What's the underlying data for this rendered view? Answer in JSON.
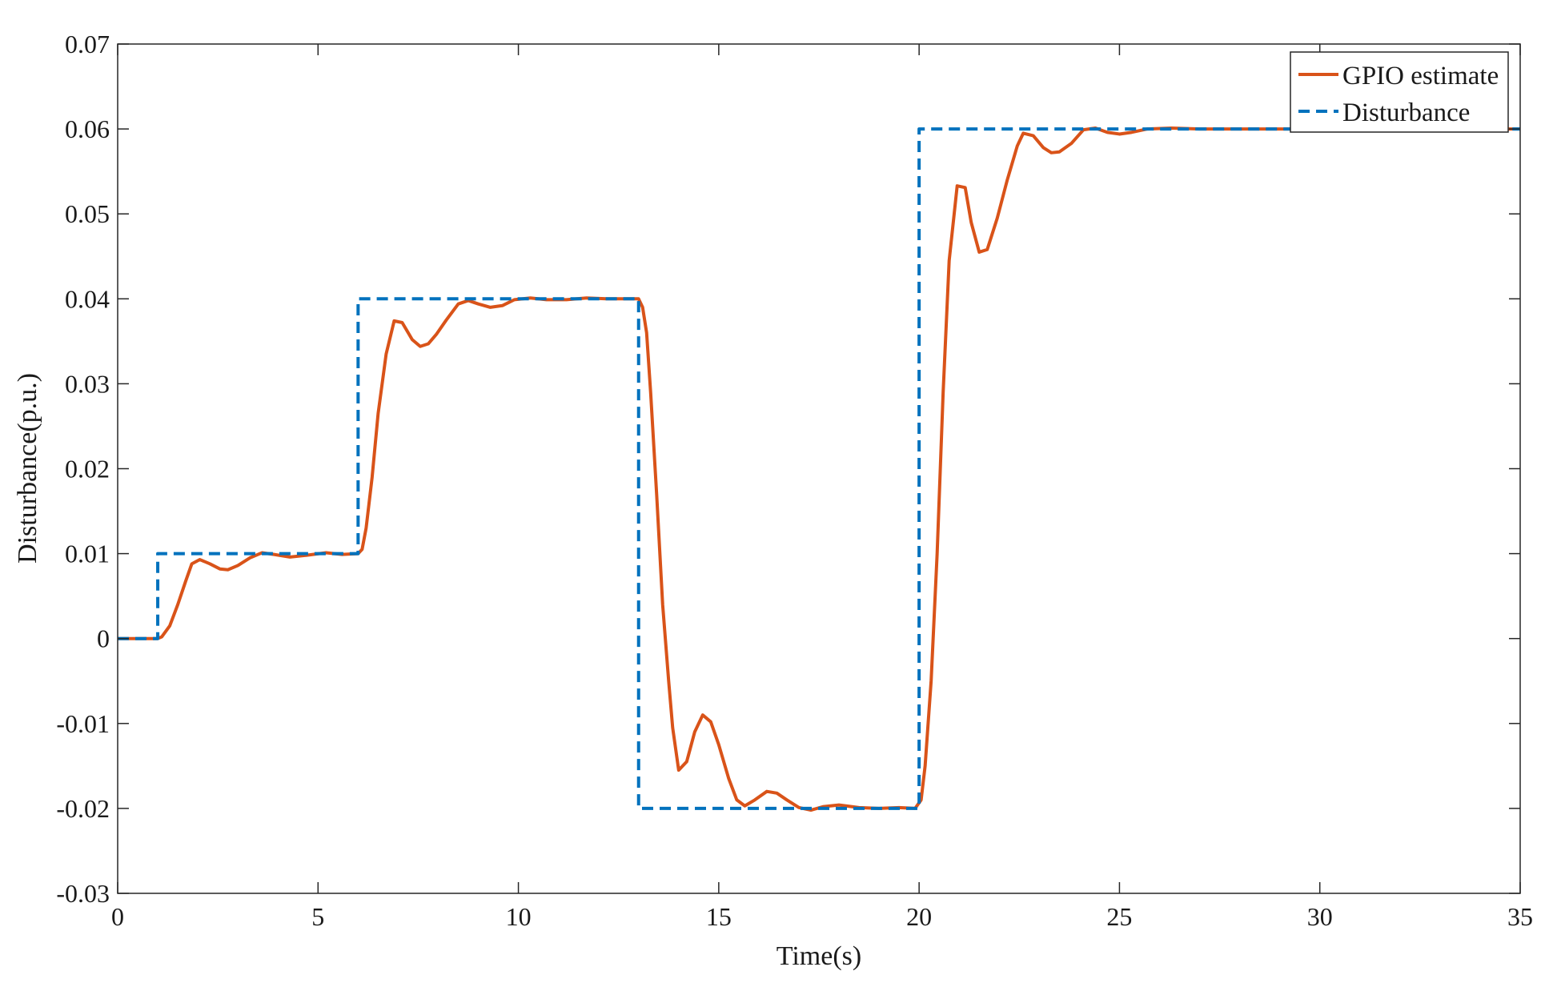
{
  "chart_data": {
    "type": "line",
    "xlabel": "Time(s)",
    "ylabel": "Disturbance(p.u.)",
    "xlim": [
      0,
      35
    ],
    "ylim": [
      -0.03,
      0.07
    ],
    "xticks": [
      0,
      5,
      10,
      15,
      20,
      25,
      30,
      35
    ],
    "xtick_labels": [
      "0",
      "5",
      "10",
      "15",
      "20",
      "25",
      "30",
      "35"
    ],
    "yticks": [
      -0.03,
      -0.02,
      -0.01,
      0,
      0.01,
      0.02,
      0.03,
      0.04,
      0.05,
      0.06,
      0.07
    ],
    "ytick_labels": [
      "-0.03",
      "-0.02",
      "-0.01",
      "0",
      "0.01",
      "0.02",
      "0.03",
      "0.04",
      "0.05",
      "0.06",
      "0.07"
    ],
    "grid": false,
    "legend_position": "top-right",
    "series": [
      {
        "name": "GPIO estimate",
        "color": "#d95319",
        "style": "solid",
        "points": [
          [
            0,
            0
          ],
          [
            1.0,
            0
          ],
          [
            1.1,
            0.0002
          ],
          [
            1.3,
            0.0015
          ],
          [
            1.5,
            0.004
          ],
          [
            1.7,
            0.0068
          ],
          [
            1.85,
            0.0088
          ],
          [
            2.05,
            0.0093
          ],
          [
            2.3,
            0.0088
          ],
          [
            2.55,
            0.0082
          ],
          [
            2.75,
            0.0081
          ],
          [
            3.0,
            0.0086
          ],
          [
            3.3,
            0.0095
          ],
          [
            3.6,
            0.0101
          ],
          [
            3.9,
            0.0099
          ],
          [
            4.3,
            0.0096
          ],
          [
            4.7,
            0.0098
          ],
          [
            5.2,
            0.0101
          ],
          [
            5.6,
            0.0099
          ],
          [
            6.0,
            0.01
          ],
          [
            6.1,
            0.0105
          ],
          [
            6.2,
            0.013
          ],
          [
            6.35,
            0.019
          ],
          [
            6.5,
            0.0265
          ],
          [
            6.7,
            0.0335
          ],
          [
            6.9,
            0.0374
          ],
          [
            7.1,
            0.0372
          ],
          [
            7.35,
            0.0352
          ],
          [
            7.55,
            0.0344
          ],
          [
            7.75,
            0.0347
          ],
          [
            7.95,
            0.0358
          ],
          [
            8.2,
            0.0375
          ],
          [
            8.5,
            0.0394
          ],
          [
            8.75,
            0.0398
          ],
          [
            9.0,
            0.0394
          ],
          [
            9.3,
            0.039
          ],
          [
            9.6,
            0.0392
          ],
          [
            9.9,
            0.0399
          ],
          [
            10.3,
            0.0401
          ],
          [
            10.7,
            0.0399
          ],
          [
            11.2,
            0.0399
          ],
          [
            11.7,
            0.0401
          ],
          [
            12.2,
            0.04
          ],
          [
            12.6,
            0.04
          ],
          [
            13.0,
            0.04
          ],
          [
            13.1,
            0.039
          ],
          [
            13.2,
            0.036
          ],
          [
            13.3,
            0.029
          ],
          [
            13.45,
            0.017
          ],
          [
            13.6,
            0.004
          ],
          [
            13.75,
            -0.005
          ],
          [
            13.85,
            -0.0105
          ],
          [
            14.0,
            -0.0155
          ],
          [
            14.2,
            -0.0145
          ],
          [
            14.4,
            -0.011
          ],
          [
            14.6,
            -0.009
          ],
          [
            14.8,
            -0.0098
          ],
          [
            15.0,
            -0.0125
          ],
          [
            15.25,
            -0.0165
          ],
          [
            15.45,
            -0.019
          ],
          [
            15.65,
            -0.0197
          ],
          [
            15.9,
            -0.019
          ],
          [
            16.2,
            -0.018
          ],
          [
            16.45,
            -0.0182
          ],
          [
            16.7,
            -0.019
          ],
          [
            17.0,
            -0.0199
          ],
          [
            17.3,
            -0.0202
          ],
          [
            17.6,
            -0.0198
          ],
          [
            18.0,
            -0.0196
          ],
          [
            18.5,
            -0.0199
          ],
          [
            19.0,
            -0.02
          ],
          [
            19.5,
            -0.0199
          ],
          [
            19.9,
            -0.02
          ],
          [
            20.05,
            -0.019
          ],
          [
            20.15,
            -0.015
          ],
          [
            20.3,
            -0.005
          ],
          [
            20.45,
            0.01
          ],
          [
            20.6,
            0.029
          ],
          [
            20.75,
            0.0445
          ],
          [
            20.95,
            0.0533
          ],
          [
            21.15,
            0.0531
          ],
          [
            21.3,
            0.049
          ],
          [
            21.5,
            0.0455
          ],
          [
            21.7,
            0.0458
          ],
          [
            21.95,
            0.0495
          ],
          [
            22.2,
            0.054
          ],
          [
            22.45,
            0.058
          ],
          [
            22.6,
            0.0595
          ],
          [
            22.85,
            0.0592
          ],
          [
            23.1,
            0.0578
          ],
          [
            23.3,
            0.0572
          ],
          [
            23.5,
            0.0573
          ],
          [
            23.8,
            0.0583
          ],
          [
            24.1,
            0.0599
          ],
          [
            24.4,
            0.0601
          ],
          [
            24.7,
            0.0596
          ],
          [
            25.0,
            0.0594
          ],
          [
            25.3,
            0.0596
          ],
          [
            25.7,
            0.06
          ],
          [
            26.3,
            0.0601
          ],
          [
            27.0,
            0.06
          ],
          [
            28.0,
            0.06
          ],
          [
            35.0,
            0.06
          ]
        ]
      },
      {
        "name": "Disturbance",
        "color": "#0072bd",
        "style": "dashed",
        "points": [
          [
            0,
            0
          ],
          [
            1,
            0
          ],
          [
            1,
            0.01
          ],
          [
            6,
            0.01
          ],
          [
            6,
            0.04
          ],
          [
            13,
            0.04
          ],
          [
            13,
            -0.02
          ],
          [
            20,
            -0.02
          ],
          [
            20,
            0.06
          ],
          [
            35,
            0.06
          ]
        ]
      }
    ]
  }
}
